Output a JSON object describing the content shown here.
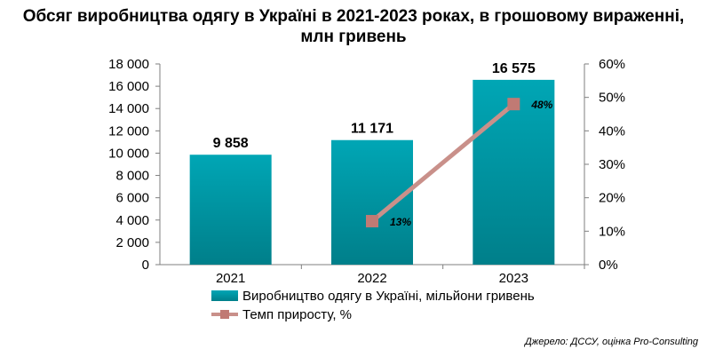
{
  "title_line1": "Обсяг виробництва одягу в Україні в 2021-2023 роках, в грошовому вираженні,",
  "title_line2": "млн гривень",
  "source": "Джерело: ДССУ, оцінка Pro-Consulting",
  "colors": {
    "bar_top": "#00a6b5",
    "bar_bottom": "#007f8a",
    "line": "#c9908a",
    "marker": "#c07a74",
    "axis": "#7f7f7f"
  },
  "chart_data": {
    "type": "bar",
    "categories": [
      "2021",
      "2022",
      "2023"
    ],
    "series": [
      {
        "name": "Виробництво одягу в Україні, мільйони гривень",
        "type": "bar",
        "axis": "left",
        "values": [
          9858,
          11171,
          16575
        ],
        "labels": [
          "9 858",
          "11 171",
          "16 575"
        ]
      },
      {
        "name": "Темп приросту, %",
        "type": "line",
        "axis": "right",
        "values": [
          null,
          13,
          48
        ],
        "labels": [
          null,
          "13%",
          "48%"
        ]
      }
    ],
    "y_left": {
      "min": 0,
      "max": 18000,
      "step": 2000,
      "tick_labels": [
        "0",
        "2 000",
        "4 000",
        "6 000",
        "8 000",
        "10 000",
        "12 000",
        "14 000",
        "16 000",
        "18 000"
      ]
    },
    "y_right": {
      "min": 0,
      "max": 60,
      "step": 10,
      "tick_labels": [
        "0%",
        "10%",
        "20%",
        "30%",
        "40%",
        "50%",
        "60%"
      ]
    },
    "grid": false,
    "legend_position": "bottom"
  }
}
